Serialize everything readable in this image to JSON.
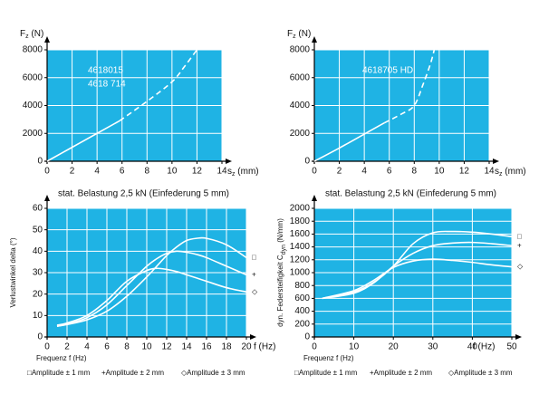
{
  "chart_data": [
    {
      "type": "line",
      "plot_color": "#1fb3e4",
      "line_color": "#ffffff",
      "y_label": {
        "text": "F",
        "sub": "z",
        "rest": " (N)"
      },
      "x_label": {
        "text": "s",
        "sub": "z",
        "rest": " (mm)"
      },
      "caption": "stat. Belastung 2,5 kN (Einfederung 5 mm)",
      "annotations": [
        "4618015",
        "4618 714"
      ],
      "x": [
        0,
        2,
        4,
        5.8,
        8,
        10,
        11,
        12
      ],
      "series": [
        {
          "style": "solid",
          "values": [
            0,
            1000,
            2000,
            2900,
            null,
            null,
            null,
            null
          ]
        },
        {
          "style": "dashed",
          "values": [
            null,
            null,
            null,
            2900,
            4300,
            5700,
            6800,
            8000
          ]
        }
      ],
      "xlim": [
        0,
        14
      ],
      "xticks": [
        0,
        2,
        4,
        6,
        8,
        10,
        12,
        14
      ],
      "ylim": [
        0,
        8000
      ],
      "yticks": [
        0,
        2000,
        4000,
        6000,
        8000
      ],
      "grid": true
    },
    {
      "type": "line",
      "plot_color": "#1fb3e4",
      "line_color": "#ffffff",
      "y_label": {
        "text": "F",
        "sub": "z",
        "rest": " (N)"
      },
      "x_label": {
        "text": "s",
        "sub": "z",
        "rest": " (mm)"
      },
      "caption": "stat. Belastung 2,5 kN (Einfederung 5 mm)",
      "annotations": [
        "4618705 HD"
      ],
      "x": [
        0,
        2,
        4,
        5.6,
        7,
        8,
        8.7,
        9.3,
        9.6
      ],
      "series": [
        {
          "style": "solid",
          "values": [
            0,
            950,
            1950,
            2750,
            null,
            null,
            null,
            null,
            null
          ]
        },
        {
          "style": "dashed",
          "values": [
            null,
            null,
            null,
            2750,
            3400,
            4000,
            5500,
            7000,
            8000
          ]
        }
      ],
      "xlim": [
        0,
        14
      ],
      "xticks": [
        0,
        2,
        4,
        6,
        8,
        10,
        12,
        14
      ],
      "ylim": [
        0,
        8000
      ],
      "yticks": [
        0,
        2000,
        4000,
        6000,
        8000
      ],
      "grid": true
    },
    {
      "type": "line",
      "plot_color": "#1fb3e4",
      "line_color": "#ffffff",
      "y_label": {
        "text": "Verlustwinkel delta (°)"
      },
      "x_label": {
        "text": "Frequenz f (Hz)"
      },
      "x_unit_label": "f (Hz)",
      "x": [
        1,
        2,
        4,
        6,
        8,
        10,
        11,
        12,
        13,
        14,
        15,
        16,
        18,
        20
      ],
      "series": [
        {
          "name": "Amplitude  ± 1 mm",
          "marker": "□",
          "values": [
            5,
            5.8,
            8,
            12,
            19,
            28,
            33,
            38,
            42,
            45,
            46,
            46,
            43,
            37
          ]
        },
        {
          "name": "Amplitude  ± 2 mm",
          "marker": "+",
          "values": [
            5,
            6,
            9,
            15,
            24,
            33,
            36.5,
            39,
            40,
            39.5,
            38.5,
            37,
            33,
            29
          ]
        },
        {
          "name": "Amplitude  ± 3 mm",
          "marker": "◇",
          "values": [
            5.5,
            6.5,
            10,
            17,
            26,
            31,
            32,
            31.5,
            30.5,
            29,
            27.5,
            26,
            23,
            21
          ]
        }
      ],
      "xlim": [
        0,
        20
      ],
      "xticks": [
        0,
        2,
        4,
        6,
        8,
        10,
        12,
        14,
        16,
        18,
        20
      ],
      "ylim": [
        0,
        60
      ],
      "yticks": [
        0,
        10,
        20,
        30,
        40,
        50,
        60
      ],
      "grid": true
    },
    {
      "type": "line",
      "plot_color": "#1fb3e4",
      "line_color": "#ffffff",
      "y_label": {
        "text": "dyn. Federsteifigkeit C",
        "sub": "dyn",
        "rest": " (N/mm)"
      },
      "x_label": {
        "text": "Frequenz f (Hz)"
      },
      "x_unit_label": "f (Hz)",
      "x": [
        2,
        10,
        15,
        20,
        25,
        30,
        35,
        40,
        45,
        50
      ],
      "series": [
        {
          "name": "Amplitude  ± 1 mm",
          "marker": "□",
          "values": [
            600,
            700,
            850,
            1100,
            1450,
            1620,
            1640,
            1630,
            1600,
            1560
          ]
        },
        {
          "name": "Amplitude  ± 2 mm",
          "marker": "+",
          "values": [
            600,
            680,
            840,
            1100,
            1300,
            1420,
            1460,
            1470,
            1450,
            1420
          ]
        },
        {
          "name": "Amplitude  ± 3 mm",
          "marker": "◇",
          "values": [
            600,
            720,
            880,
            1080,
            1180,
            1210,
            1190,
            1160,
            1120,
            1090
          ]
        }
      ],
      "xlim": [
        0,
        50
      ],
      "xticks": [
        0,
        10,
        20,
        30,
        40,
        50
      ],
      "ylim": [
        0,
        2000
      ],
      "yticks": [
        0,
        200,
        400,
        600,
        800,
        1000,
        1200,
        1400,
        1600,
        1800,
        2000
      ],
      "grid": true
    }
  ]
}
